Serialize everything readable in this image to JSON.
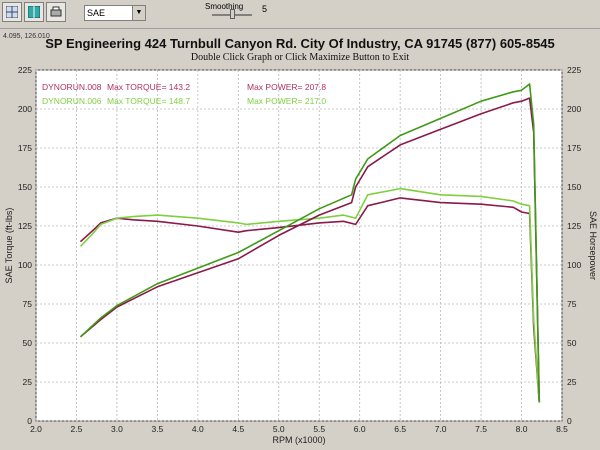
{
  "toolbar": {
    "combo_value": "SAE",
    "smoothing_label": "Smoothing",
    "smoothing_value": "5",
    "smoothing_fraction": 0.5
  },
  "coord_readout": "4.095, 126.010",
  "colors": {
    "run008": "#8a1a4a",
    "run006": "#3e9a18",
    "run006_light": "#86e050",
    "plot_bg": "#ffffff",
    "grid": "#b8b8b8"
  },
  "chart_data": {
    "type": "line",
    "title": "SP Engineering 424 Turnbull Canyon Rd. City Of Industry, CA 91745 (877) 605-8545",
    "subtitle": "Double Click Graph or Click Maximize Button to Exit",
    "xlabel": "RPM (x1000)",
    "ylabel_left": "SAE Torque (ft-lbs)",
    "ylabel_right": "SAE Horsepower",
    "xlim": [
      2.0,
      8.5
    ],
    "ylim": [
      0,
      225
    ],
    "grid": true,
    "x_ticks": [
      "2.0",
      "2.5",
      "3.0",
      "3.5",
      "4.0",
      "4.5",
      "5.0",
      "5.5",
      "6.0",
      "6.5",
      "7.0",
      "7.5",
      "8.0",
      "8.5"
    ],
    "y_ticks": [
      "0",
      "25",
      "50",
      "75",
      "100",
      "125",
      "150",
      "175",
      "200",
      "225"
    ],
    "legend": [
      {
        "run": "DYNORUN.008",
        "torque_label": "Max TORQUE= 143.2",
        "power_label": "Max POWER= 207.8",
        "color": "#b03060"
      },
      {
        "run": "DYNORUN.006",
        "torque_label": "Max TORQUE= 148.7",
        "power_label": "Max POWER= 217.0",
        "color": "#7ed040"
      }
    ],
    "series": [
      {
        "name": "DYNORUN.008 Torque",
        "color": "#8a1a4a",
        "x": [
          2.55,
          2.7,
          2.8,
          3.0,
          3.2,
          3.5,
          4.0,
          4.5,
          4.6,
          5.0,
          5.5,
          5.8,
          5.95,
          6.1,
          6.5,
          7.0,
          7.5,
          7.9,
          8.0,
          8.1,
          8.15,
          8.22
        ],
        "y": [
          115,
          122,
          127,
          130,
          129,
          128,
          125,
          121,
          122,
          124,
          127,
          128,
          126,
          138,
          143,
          140,
          139,
          137,
          134,
          133,
          60,
          12
        ]
      },
      {
        "name": "DYNORUN.006 Torque",
        "color": "#7ed040",
        "x": [
          2.55,
          2.7,
          2.8,
          3.0,
          3.2,
          3.5,
          4.0,
          4.5,
          4.6,
          5.0,
          5.5,
          5.8,
          5.95,
          6.1,
          6.5,
          7.0,
          7.5,
          7.9,
          8.0,
          8.1,
          8.15,
          8.22
        ],
        "y": [
          112,
          120,
          126,
          130,
          131,
          132,
          130,
          127,
          126,
          128,
          130,
          132,
          130,
          145,
          149,
          145,
          144,
          141,
          139,
          138,
          65,
          12
        ]
      },
      {
        "name": "DYNORUN.008 Power",
        "color": "#8a1a4a",
        "x": [
          2.55,
          2.8,
          3.0,
          3.5,
          4.0,
          4.5,
          5.0,
          5.5,
          5.9,
          5.95,
          6.1,
          6.5,
          7.0,
          7.5,
          7.9,
          8.0,
          8.1,
          8.15,
          8.22
        ],
        "y": [
          54,
          65,
          73,
          86,
          95,
          104,
          119,
          132,
          140,
          150,
          163,
          177,
          187,
          197,
          204,
          205,
          207,
          185,
          12
        ]
      },
      {
        "name": "DYNORUN.006 Power",
        "color": "#3e9a18",
        "x": [
          2.55,
          2.8,
          3.0,
          3.5,
          4.0,
          4.5,
          5.0,
          5.5,
          5.9,
          5.95,
          6.1,
          6.5,
          7.0,
          7.5,
          7.9,
          8.0,
          8.1,
          8.15,
          8.22
        ],
        "y": [
          54,
          66,
          74,
          88,
          98,
          108,
          122,
          136,
          145,
          155,
          168,
          183,
          194,
          205,
          211,
          212,
          216,
          190,
          12
        ]
      }
    ]
  }
}
